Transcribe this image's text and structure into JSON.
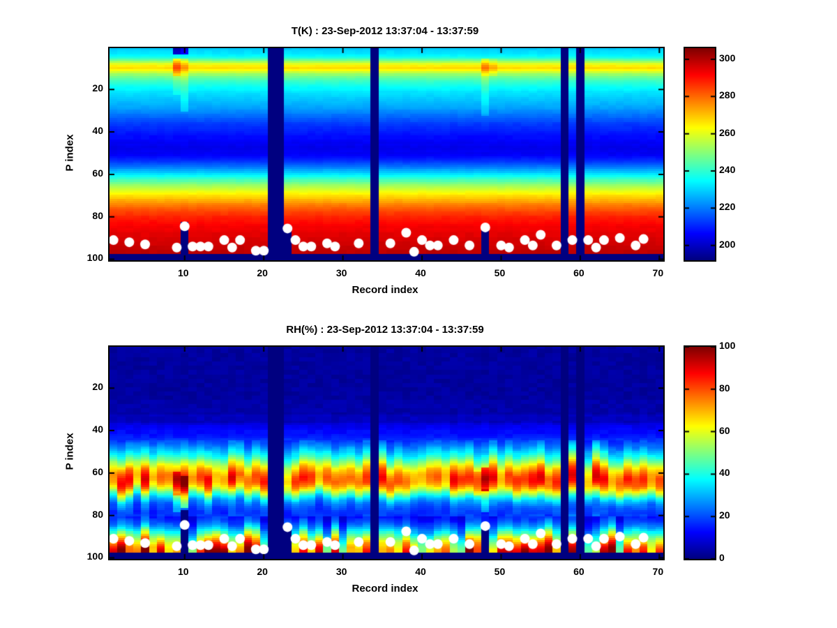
{
  "figure": {
    "background": "#ffffff",
    "axis_color": "#000000",
    "dot_color": "#ffffff",
    "missing_color_note": "jet minimum navy"
  },
  "chart_data": [
    {
      "type": "heatmap",
      "title": "T(K) : 23-Sep-2012 13:37:04 - 13:37:59",
      "xlabel": "Record index",
      "ylabel": "P index",
      "colormap": "jet",
      "x_range": [
        0.5,
        70.5
      ],
      "y_range": [
        0.5,
        100.5
      ],
      "y_axis_reversed": true,
      "n_records": 70,
      "n_levels": 100,
      "x_ticks": [
        10,
        20,
        30,
        40,
        50,
        60,
        70
      ],
      "y_ticks": [
        20,
        40,
        60,
        80,
        100
      ],
      "clim": [
        192,
        306
      ],
      "colorbar_ticks": [
        200,
        220,
        240,
        260,
        280,
        300
      ],
      "profile": [
        229,
        231,
        232,
        234,
        238,
        245,
        253,
        260,
        265,
        267,
        263,
        257,
        251,
        247,
        244,
        241,
        239,
        237,
        235,
        234,
        232,
        231,
        230,
        229,
        228,
        227,
        226,
        225,
        224,
        222,
        221,
        219,
        218,
        216,
        215,
        213,
        212,
        211,
        210,
        209,
        208,
        207,
        207,
        206,
        205,
        205,
        204,
        204,
        205,
        205,
        206,
        208,
        210,
        212,
        215,
        218,
        221,
        225,
        228,
        232,
        236,
        240,
        244,
        248,
        252,
        255,
        258,
        261,
        264,
        267,
        269,
        272,
        274,
        277,
        279,
        281,
        283,
        285,
        286,
        288,
        289,
        290,
        291,
        292,
        293,
        293,
        294,
        295,
        295,
        296,
        296,
        297,
        297,
        298,
        298,
        299,
        299,
        300,
        300,
        300
      ],
      "missing_records": [
        21,
        22,
        34,
        58,
        60
      ],
      "masked_bottom_from": 98,
      "notches": [
        {
          "record": 10,
          "top_p": 83
        },
        {
          "record": 23,
          "top_p": 86
        },
        {
          "record": 48,
          "top_p": 86
        }
      ],
      "anomalies": [
        {
          "record": 9,
          "p_from": 1,
          "p_to": 3,
          "delta": -32
        },
        {
          "record": 10,
          "p_from": 1,
          "p_to": 3,
          "delta": -26
        },
        {
          "record": 9,
          "p_from": 6,
          "p_to": 13,
          "delta": 17
        },
        {
          "record": 10,
          "p_from": 6,
          "p_to": 13,
          "delta": 9
        },
        {
          "record": 10,
          "p_from": 14,
          "p_to": 30,
          "delta": 7
        },
        {
          "record": 9,
          "p_from": 14,
          "p_to": 22,
          "delta": 5
        },
        {
          "record": 48,
          "p_from": 6,
          "p_to": 13,
          "delta": 12
        },
        {
          "record": 49,
          "p_from": 6,
          "p_to": 13,
          "delta": 5
        },
        {
          "record": 48,
          "p_from": 14,
          "p_to": 32,
          "delta": 6
        }
      ],
      "band": null,
      "surface": null,
      "noise": 1.6,
      "dots": [
        [
          1,
          91
        ],
        [
          3,
          92
        ],
        [
          5,
          93
        ],
        [
          9,
          94.5
        ],
        [
          10,
          84.5
        ],
        [
          11,
          94
        ],
        [
          12,
          94
        ],
        [
          13,
          94
        ],
        [
          15,
          91
        ],
        [
          16,
          94.5
        ],
        [
          17,
          91
        ],
        [
          19,
          96
        ],
        [
          20,
          96
        ],
        [
          23,
          85.5
        ],
        [
          24,
          91
        ],
        [
          25,
          94
        ],
        [
          26,
          94
        ],
        [
          28,
          92.5
        ],
        [
          29,
          94
        ],
        [
          32,
          92.5
        ],
        [
          36,
          92.5
        ],
        [
          38,
          87.5
        ],
        [
          39,
          96.5
        ],
        [
          40,
          91
        ],
        [
          41,
          93.5
        ],
        [
          42,
          93.5
        ],
        [
          44,
          91
        ],
        [
          46,
          93.5
        ],
        [
          48,
          85
        ],
        [
          50,
          93.5
        ],
        [
          51,
          94.5
        ],
        [
          53,
          91
        ],
        [
          54,
          93.5
        ],
        [
          55,
          88.5
        ],
        [
          57,
          93.5
        ],
        [
          59,
          91
        ],
        [
          61,
          91
        ],
        [
          62,
          94.5
        ],
        [
          63,
          91
        ],
        [
          65,
          90
        ],
        [
          67,
          93.5
        ],
        [
          68,
          90.5
        ]
      ]
    },
    {
      "type": "heatmap",
      "title": "RH(%) : 23-Sep-2012 13:37:04 - 13:37:59",
      "xlabel": "Record index",
      "ylabel": "P index",
      "colormap": "jet",
      "x_range": [
        0.5,
        70.5
      ],
      "y_range": [
        0.5,
        100.5
      ],
      "y_axis_reversed": true,
      "n_records": 70,
      "n_levels": 100,
      "x_ticks": [
        10,
        20,
        30,
        40,
        50,
        60,
        70
      ],
      "y_ticks": [
        20,
        40,
        60,
        80,
        100
      ],
      "clim": [
        0,
        100
      ],
      "colorbar_ticks": [
        0,
        20,
        40,
        60,
        80,
        100
      ],
      "profile": [
        3,
        3,
        3,
        3,
        3,
        3,
        3,
        3,
        3,
        3,
        3,
        3,
        3,
        3,
        3,
        3,
        3,
        3,
        3,
        3,
        3,
        3,
        3,
        3,
        3,
        4,
        4,
        4,
        4,
        4,
        4,
        4,
        6,
        6,
        6,
        6,
        9,
        11,
        12,
        13,
        13,
        14,
        15,
        17,
        19,
        21,
        23,
        26,
        29,
        32,
        35,
        38,
        42,
        46,
        50,
        55,
        60,
        64,
        68,
        71,
        74,
        76,
        77,
        76,
        74,
        71,
        66,
        60,
        54,
        47,
        41,
        35,
        30,
        26,
        23,
        21,
        19,
        18,
        17,
        17,
        18,
        20,
        23,
        26,
        30,
        35,
        41,
        48,
        55,
        62,
        68,
        74,
        80,
        85,
        89,
        92,
        94,
        94,
        94,
        94
      ],
      "missing_records": [
        21,
        22,
        34,
        58,
        60
      ],
      "masked_bottom_from": 98,
      "notches": [
        {
          "record": 10,
          "top_p": 78
        },
        {
          "record": 23,
          "top_p": 86
        },
        {
          "record": 48,
          "top_p": 86
        }
      ],
      "anomalies": [
        {
          "record": 9,
          "p_from": 60,
          "p_to": 70,
          "delta": 15
        },
        {
          "record": 10,
          "p_from": 62,
          "p_to": 76,
          "delta": 20
        },
        {
          "record": 9,
          "p_from": 70,
          "p_to": 78,
          "delta": 10
        },
        {
          "record": 47,
          "p_from": 60,
          "p_to": 70,
          "delta": 8
        },
        {
          "record": 48,
          "p_from": 58,
          "p_to": 68,
          "delta": 22
        },
        {
          "record": 48,
          "p_from": 68,
          "p_to": 78,
          "delta": 12
        }
      ],
      "band": {
        "p_from": 45,
        "p_to": 80,
        "jitter": 2,
        "amp_base": 0.85,
        "amp_range": 0.35
      },
      "surface": {
        "p_from": 81,
        "p_to": 97,
        "factor_min": 0.5,
        "factor_range": 0.65,
        "jitter": 1.5
      },
      "noise": 3,
      "dots": [
        [
          1,
          91
        ],
        [
          3,
          92
        ],
        [
          5,
          93
        ],
        [
          9,
          94.5
        ],
        [
          10,
          84.5
        ],
        [
          11,
          94
        ],
        [
          12,
          94
        ],
        [
          13,
          94
        ],
        [
          15,
          91
        ],
        [
          16,
          94.5
        ],
        [
          17,
          91
        ],
        [
          19,
          96
        ],
        [
          20,
          96
        ],
        [
          23,
          85.5
        ],
        [
          24,
          91
        ],
        [
          25,
          94
        ],
        [
          26,
          94
        ],
        [
          28,
          92.5
        ],
        [
          29,
          94
        ],
        [
          32,
          92.5
        ],
        [
          36,
          92.5
        ],
        [
          38,
          87.5
        ],
        [
          39,
          96.5
        ],
        [
          40,
          91
        ],
        [
          41,
          93.5
        ],
        [
          42,
          93.5
        ],
        [
          44,
          91
        ],
        [
          46,
          93.5
        ],
        [
          48,
          85
        ],
        [
          50,
          93.5
        ],
        [
          51,
          94.5
        ],
        [
          53,
          91
        ],
        [
          54,
          93.5
        ],
        [
          55,
          88.5
        ],
        [
          57,
          93.5
        ],
        [
          59,
          91
        ],
        [
          61,
          91
        ],
        [
          62,
          94.5
        ],
        [
          63,
          91
        ],
        [
          65,
          90
        ],
        [
          67,
          93.5
        ],
        [
          68,
          90.5
        ]
      ]
    }
  ]
}
